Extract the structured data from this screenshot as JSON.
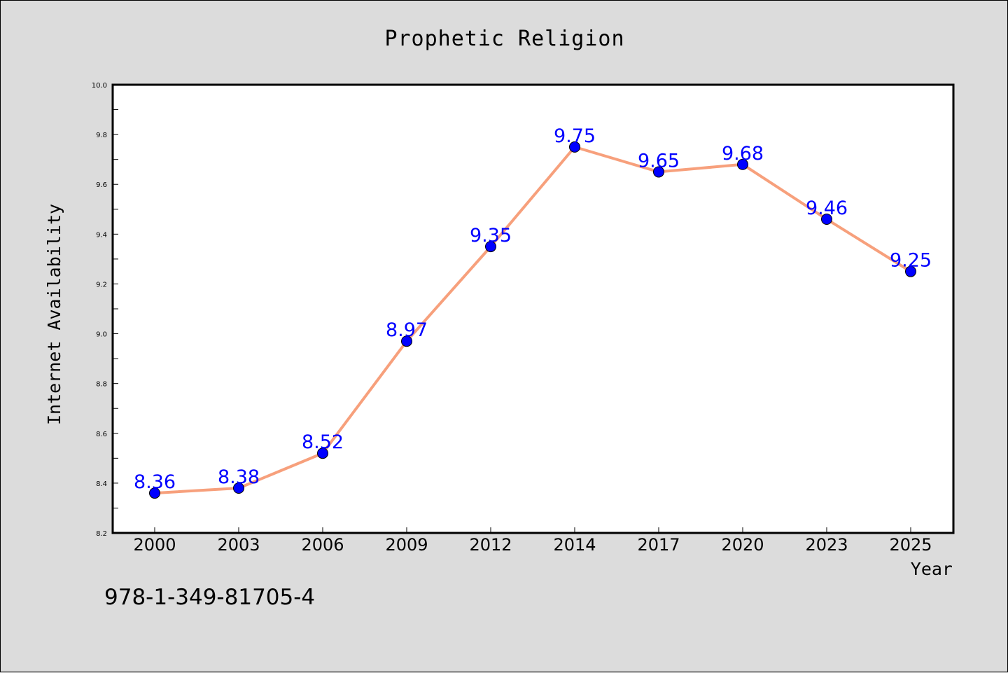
{
  "colors": {
    "background": "#dcdcdc",
    "plot_background": "#ffffff",
    "line": "#f7a07c",
    "marker": "#0000ff",
    "data_label": "#0000ff"
  },
  "footnote": "978-1-349-81705-4",
  "chart_data": {
    "type": "line",
    "title": "Prophetic Religion",
    "xlabel": "Year",
    "ylabel": "Internet Availability",
    "categories": [
      "2000",
      "2003",
      "2006",
      "2009",
      "2012",
      "2014",
      "2017",
      "2020",
      "2023",
      "2025"
    ],
    "series": [
      {
        "values": [
          8.36,
          8.38,
          8.52,
          8.97,
          9.35,
          9.75,
          9.65,
          9.68,
          9.46,
          9.25
        ],
        "labels": [
          "8.36",
          "8.38",
          "8.52",
          "8.97",
          "9.35",
          "9.75",
          "9.65",
          "9.68",
          "9.46",
          "9.25"
        ]
      }
    ],
    "ylim": [
      8.2,
      10.0
    ],
    "y_ticks": [
      "8.2",
      "8.4",
      "8.6",
      "8.8",
      "9.0",
      "9.2",
      "9.4",
      "9.6",
      "9.8",
      "10.0"
    ],
    "grid": false,
    "legend": false
  }
}
